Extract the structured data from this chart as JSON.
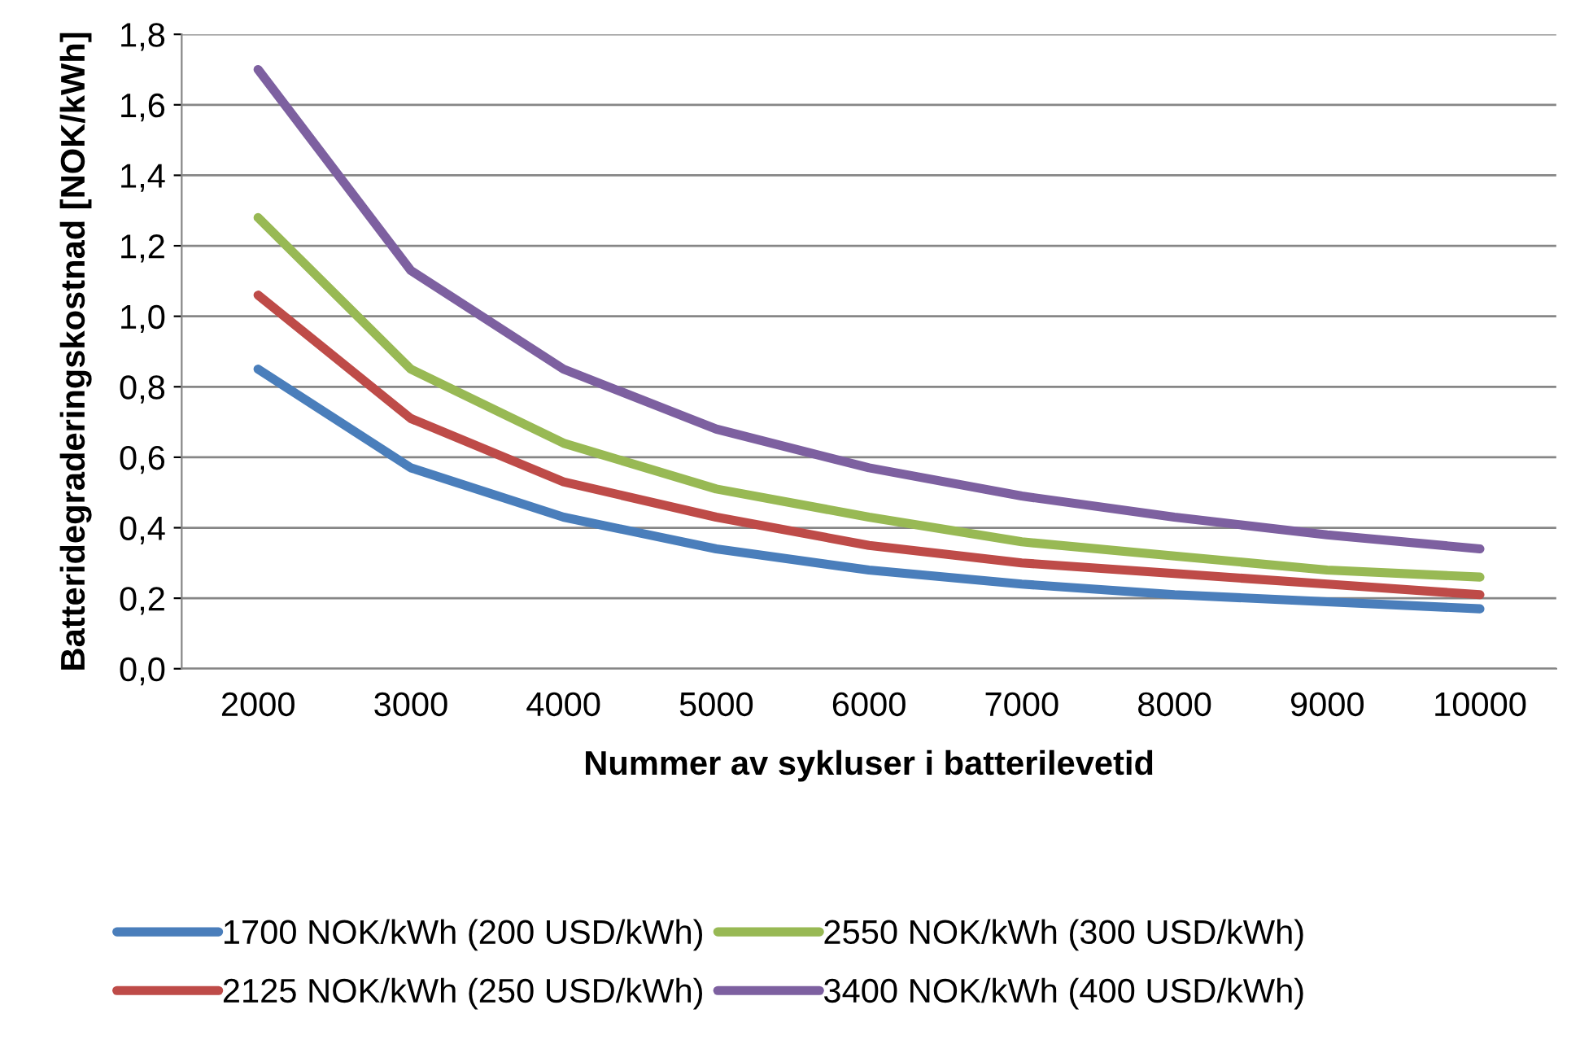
{
  "chart_data": {
    "type": "line",
    "xlabel": "Nummer av sykluser i batterilevetid",
    "ylabel": "Batteridegraderingskostnad [NOK/kWh]",
    "categories": [
      "2000",
      "3000",
      "4000",
      "5000",
      "6000",
      "7000",
      "8000",
      "9000",
      "10000"
    ],
    "series": [
      {
        "name": "1700 NOK/kWh (200 USD/kWh)",
        "color": "#4a7ebb",
        "values": [
          0.85,
          0.57,
          0.43,
          0.34,
          0.28,
          0.24,
          0.21,
          0.19,
          0.17
        ]
      },
      {
        "name": "2125 NOK/kWh (250 USD/kWh)",
        "color": "#be4b48",
        "values": [
          1.06,
          0.71,
          0.53,
          0.43,
          0.35,
          0.3,
          0.27,
          0.24,
          0.21
        ]
      },
      {
        "name": "2550 NOK/kWh (300 USD/kWh)",
        "color": "#98b954",
        "values": [
          1.28,
          0.85,
          0.64,
          0.51,
          0.43,
          0.36,
          0.32,
          0.28,
          0.26
        ]
      },
      {
        "name": "3400 NOK/kWh (400 USD/kWh)",
        "color": "#7d60a0",
        "values": [
          1.7,
          1.13,
          0.85,
          0.68,
          0.57,
          0.49,
          0.43,
          0.38,
          0.34
        ]
      }
    ],
    "ylim": [
      0,
      1.8
    ],
    "yticks": [
      {
        "value": 0,
        "label": "0,0"
      },
      {
        "value": 0.2,
        "label": "0,2"
      },
      {
        "value": 0.4,
        "label": "0,4"
      },
      {
        "value": 0.6,
        "label": "0,6"
      },
      {
        "value": 0.8,
        "label": "0,8"
      },
      {
        "value": 1.0,
        "label": "1,0"
      },
      {
        "value": 1.2,
        "label": "1,2"
      },
      {
        "value": 1.4,
        "label": "1,4"
      },
      {
        "value": 1.6,
        "label": "1,6"
      },
      {
        "value": 1.8,
        "label": "1,8"
      }
    ],
    "grid": "y",
    "legend": "bottom",
    "marker": "none",
    "line_style": "solid"
  }
}
